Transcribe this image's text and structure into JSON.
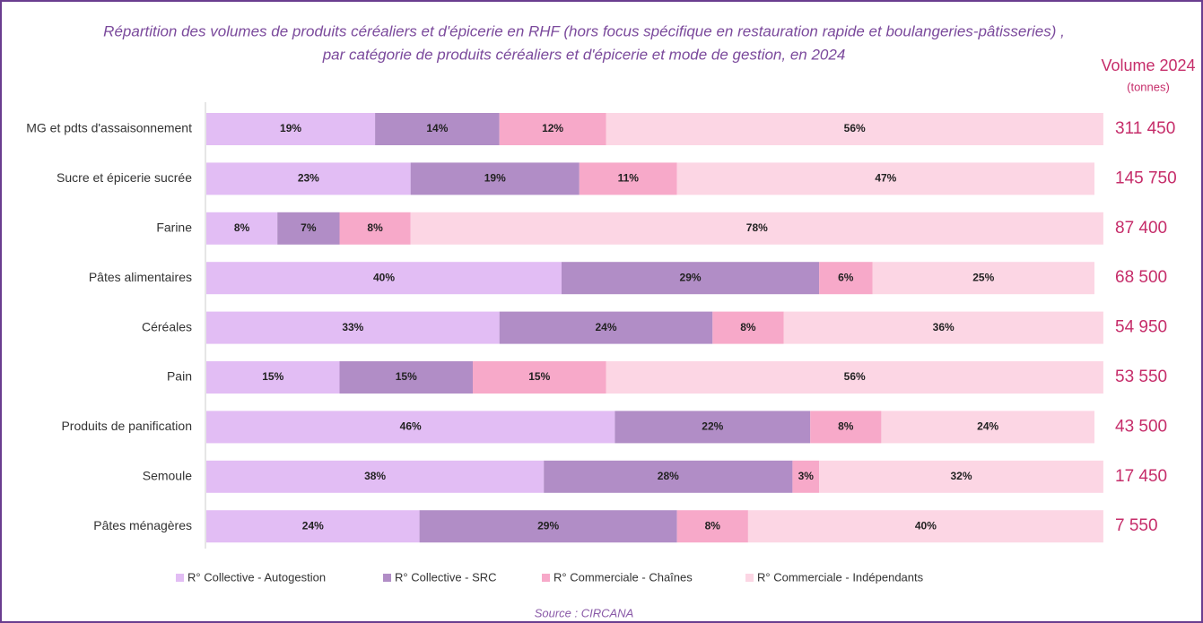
{
  "chart_data": {
    "type": "stacked-bar-horizontal",
    "title": "Répartition des volumes de produits céréaliers et d'épicerie en RHF (hors focus spécifique en restauration rapide et boulangeries-pâtisseries) ,",
    "subtitle": "par catégorie de produits céréaliers et d'épicerie et mode de gestion, en 2024",
    "source": "Source : CIRCANA",
    "categories": [
      "MG et pdts d'assaisonnement",
      "Sucre et épicerie sucrée",
      "Farine",
      "Pâtes alimentaires",
      "Céréales",
      "Pain",
      "Produits de panification",
      "Semoule",
      "Pâtes ménagères"
    ],
    "series": [
      {
        "name": "R° Collective - Autogestion",
        "color": "#e2bdf4",
        "values": [
          19,
          23,
          8,
          40,
          33,
          15,
          46,
          38,
          24
        ],
        "value_labels": [
          "19%",
          "23%",
          "8%",
          "40%",
          "33%",
          "15%",
          "46%",
          "38%",
          "24%"
        ]
      },
      {
        "name": "R° Collective - SRC",
        "color": "#b18dc6",
        "values": [
          14,
          19,
          7,
          29,
          24,
          15,
          22,
          28,
          29
        ],
        "value_labels": [
          "14%",
          "19%",
          "7%",
          "29%",
          "24%",
          "15%",
          "22%",
          "28%",
          "29%"
        ]
      },
      {
        "name": "R° Commerciale - Chaînes",
        "color": "#f7a9c9",
        "values": [
          12,
          11,
          8,
          6,
          8,
          15,
          8,
          3,
          8
        ],
        "value_labels": [
          "12%",
          "11%",
          "8%",
          "6%",
          "8%",
          "15%",
          "8%",
          "3%",
          "8%"
        ]
      },
      {
        "name": "R° Commerciale - Indépendants",
        "color": "#fcd6e4",
        "values": [
          56,
          47,
          78,
          25,
          36,
          56,
          24,
          32,
          40
        ],
        "value_labels": [
          "56%",
          "47%",
          "78%",
          "25%",
          "36%",
          "56%",
          "24%",
          "32%",
          "40%"
        ]
      }
    ],
    "volume": {
      "title": "Volume 2024",
      "unit": "(tonnes)",
      "color": "#c62d6a",
      "values": [
        311450,
        145750,
        87400,
        68500,
        54950,
        53550,
        43500,
        17450,
        7550
      ],
      "value_labels": [
        "311 450",
        "145 750",
        "87 400",
        "68 500",
        "54 950",
        "53 550",
        "43 500",
        "17 450",
        "7 550"
      ]
    }
  }
}
